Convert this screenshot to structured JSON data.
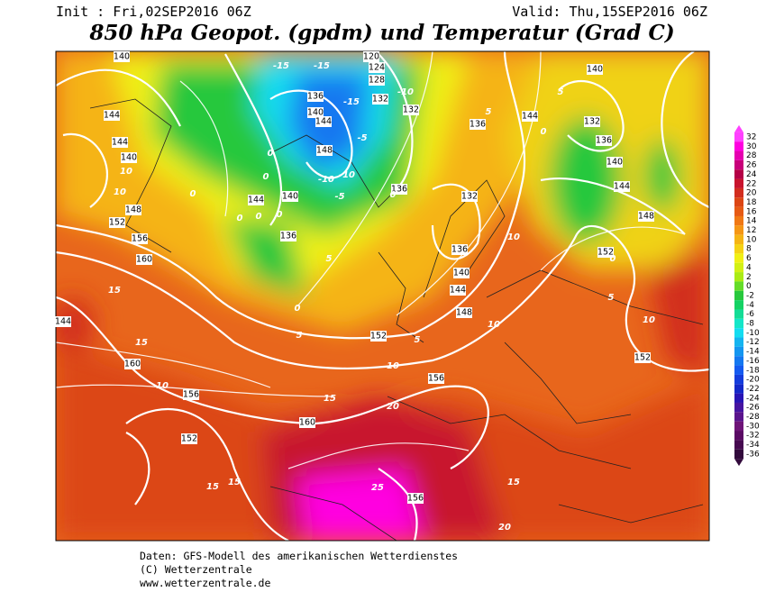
{
  "header": {
    "init": "Init : Fri,02SEP2016 06Z",
    "valid": "Valid: Thu,15SEP2016 06Z",
    "title": "850 hPa Geopot. (gpdm) und Temperatur (Grad C)"
  },
  "map": {
    "geopotential_labels": [
      140,
      144,
      144,
      140,
      148,
      152,
      156,
      160,
      160,
      156,
      152,
      160,
      156,
      152,
      148,
      144,
      140,
      136,
      132,
      136,
      144,
      140,
      132,
      136,
      140,
      144,
      148,
      152,
      152,
      156,
      136,
      140,
      144,
      136,
      140,
      144,
      148,
      132,
      128,
      124,
      120,
      136,
      132,
      144
    ],
    "temperature_labels": [
      -15,
      -15,
      -10,
      -15,
      -5,
      -10,
      -10,
      -5,
      0,
      0,
      0,
      0,
      0,
      0,
      0,
      5,
      0,
      5,
      5,
      10,
      10,
      15,
      15,
      15,
      10,
      20,
      15,
      15,
      25,
      20,
      15,
      10,
      5,
      10,
      0,
      0,
      5,
      5,
      10,
      10
    ]
  },
  "colorbar": {
    "ticks": [
      32,
      30,
      28,
      26,
      24,
      22,
      20,
      18,
      16,
      14,
      12,
      10,
      8,
      6,
      4,
      2,
      0,
      -2,
      -4,
      -6,
      -8,
      -10,
      -12,
      -14,
      -16,
      -18,
      -20,
      -22,
      -24,
      -26,
      -28,
      -30,
      -32,
      -34,
      -36
    ],
    "colors": [
      "#ff40ff",
      "#ff00e0",
      "#e600b0",
      "#c8007a",
      "#b40046",
      "#c8142d",
      "#d22d1e",
      "#dc4614",
      "#e65a14",
      "#f07814",
      "#f59614",
      "#f5b414",
      "#f5d214",
      "#f0f014",
      "#d2f014",
      "#aaeb14",
      "#64dc28",
      "#28c83c",
      "#14d264",
      "#14dc96",
      "#14e6c8",
      "#14dcf0",
      "#14b4f0",
      "#1496f0",
      "#1478f0",
      "#145af0",
      "#143cdc",
      "#1428c8",
      "#2814b4",
      "#4614a0",
      "#5a148c",
      "#6e1478",
      "#5a0a64",
      "#460a50",
      "#320a3c"
    ]
  },
  "footer": [
    "Daten: GFS-Modell des amerikanischen Wetterdienstes",
    "(C) Wetterzentrale",
    "www.wetterzentrale.de"
  ]
}
